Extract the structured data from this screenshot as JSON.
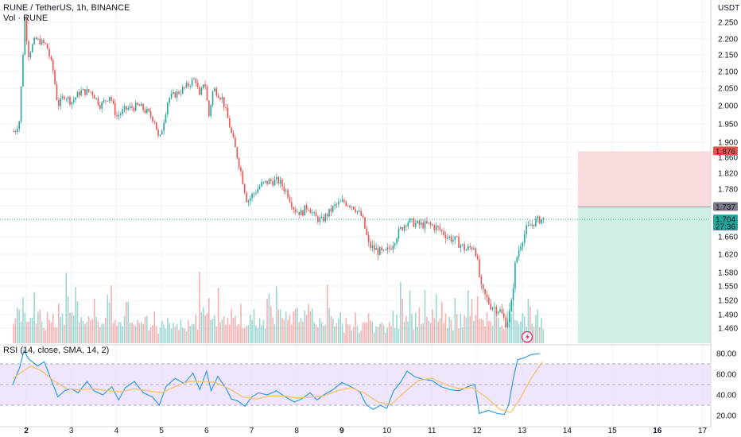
{
  "header": {
    "symbol_line": "RUNE / TetherUS, 1h, BINANCE",
    "volume_label": "Vol · RUNE",
    "currency": "USDT",
    "rsi_label": "RSI (14, close, SMA, 14, 2)"
  },
  "colors": {
    "up": "#26a69a",
    "down": "#ef5350",
    "rsi_line": "#2196f3",
    "rsi_sma": "#f5c36b",
    "rsi_band": "#e9dcfb",
    "stop_zone": "#f8cfd2",
    "target_zone": "#c8ebe1",
    "price_tag": "#26a69a",
    "stop_tag": "#ef5350",
    "entry_tag": "#787b86"
  },
  "tags": {
    "stop_price": "1.876",
    "entry_price": "1.737",
    "last_price": "1.704",
    "countdown": "27:36"
  },
  "chart_data": [
    {
      "type": "candlestick",
      "title": "RUNE / TetherUS, 1h, BINANCE",
      "ylabel": "USDT",
      "x_ticks": [
        "2",
        "3",
        "4",
        "5",
        "6",
        "7",
        "8",
        "9",
        "10",
        "11",
        "12",
        "13",
        "14",
        "15",
        "16",
        "17"
      ],
      "y_ticks": [
        2.25,
        2.2,
        2.15,
        2.1,
        2.05,
        2.0,
        1.95,
        1.9,
        1.86,
        1.82,
        1.78,
        1.74,
        1.7,
        1.66,
        1.62,
        1.58,
        1.55,
        1.52,
        1.49,
        1.46
      ],
      "ylim": [
        1.44,
        2.27
      ],
      "xlim_days": [
        1.7,
        17.6
      ],
      "grid": true,
      "close_path": [
        [
          1.75,
          1.93
        ],
        [
          1.85,
          1.96
        ],
        [
          1.97,
          2.26
        ],
        [
          2.05,
          2.15
        ],
        [
          2.2,
          2.2
        ],
        [
          2.45,
          2.18
        ],
        [
          2.6,
          2.1
        ],
        [
          2.7,
          2.0
        ],
        [
          2.85,
          2.03
        ],
        [
          3.0,
          2.01
        ],
        [
          3.2,
          2.04
        ],
        [
          3.45,
          2.04
        ],
        [
          3.65,
          2.0
        ],
        [
          3.85,
          2.03
        ],
        [
          4.0,
          1.97
        ],
        [
          4.2,
          1.99
        ],
        [
          4.5,
          2.0
        ],
        [
          4.7,
          1.98
        ],
        [
          4.85,
          1.96
        ],
        [
          4.95,
          1.9
        ],
        [
          5.15,
          2.02
        ],
        [
          5.4,
          2.04
        ],
        [
          5.6,
          2.06
        ],
        [
          5.75,
          2.08
        ],
        [
          5.85,
          2.02
        ],
        [
          5.95,
          2.08
        ],
        [
          6.05,
          1.97
        ],
        [
          6.15,
          2.05
        ],
        [
          6.35,
          2.02
        ],
        [
          6.5,
          1.95
        ],
        [
          6.6,
          1.9
        ],
        [
          6.75,
          1.83
        ],
        [
          6.9,
          1.75
        ],
        [
          7.05,
          1.77
        ],
        [
          7.2,
          1.79
        ],
        [
          7.4,
          1.8
        ],
        [
          7.6,
          1.8
        ],
        [
          7.8,
          1.77
        ],
        [
          7.95,
          1.73
        ],
        [
          8.1,
          1.72
        ],
        [
          8.25,
          1.74
        ],
        [
          8.4,
          1.71
        ],
        [
          8.55,
          1.7
        ],
        [
          8.7,
          1.72
        ],
        [
          8.85,
          1.74
        ],
        [
          9.05,
          1.75
        ],
        [
          9.25,
          1.74
        ],
        [
          9.45,
          1.71
        ],
        [
          9.6,
          1.64
        ],
        [
          9.75,
          1.63
        ],
        [
          9.95,
          1.62
        ],
        [
          10.1,
          1.64
        ],
        [
          10.25,
          1.67
        ],
        [
          10.45,
          1.7
        ],
        [
          10.7,
          1.69
        ],
        [
          10.95,
          1.69
        ],
        [
          11.15,
          1.68
        ],
        [
          11.35,
          1.66
        ],
        [
          11.55,
          1.65
        ],
        [
          11.75,
          1.63
        ],
        [
          11.95,
          1.64
        ],
        [
          12.1,
          1.54
        ],
        [
          12.3,
          1.51
        ],
        [
          12.5,
          1.5
        ],
        [
          12.65,
          1.47
        ],
        [
          12.75,
          1.5
        ],
        [
          12.85,
          1.6
        ],
        [
          12.95,
          1.64
        ],
        [
          13.1,
          1.68
        ],
        [
          13.3,
          1.7
        ],
        [
          13.45,
          1.705
        ]
      ],
      "last_price": 1.704,
      "position": {
        "stop": 1.876,
        "entry": 1.737,
        "target_low": 1.44
      }
    },
    {
      "type": "bar",
      "title": "Vol · RUNE",
      "note": "Volume histogram; relative heights (0-1) per hour bar",
      "volume_relative": [
        0.35,
        0.28,
        0.55,
        0.32,
        0.3,
        0.5,
        0.3,
        0.26,
        0.22,
        0.38,
        0.3,
        0.48,
        0.26,
        0.3,
        0.4,
        0.22,
        0.28,
        0.24,
        0.3,
        0.35,
        0.22,
        0.5,
        0.3,
        0.25,
        0.42,
        0.28,
        0.33,
        0.26,
        0.7,
        0.5,
        0.45,
        0.32,
        0.3,
        0.55,
        0.4,
        0.36,
        0.28,
        0.24,
        0.3,
        0.35,
        0.32,
        0.28,
        0.3,
        0.44,
        0.34,
        0.3,
        0.28,
        0.26,
        0.36,
        0.3,
        0.5,
        0.4,
        0.6,
        0.35,
        0.3,
        0.28,
        0.25,
        0.35,
        0.3,
        0.28,
        0.62,
        0.4,
        0.34,
        0.3,
        0.28,
        0.32,
        0.26,
        0.3,
        0.22,
        0.2,
        0.32,
        0.26,
        0.22,
        0.2,
        0.18,
        0.3,
        0.22,
        0.18,
        0.16,
        0.22,
        0.2,
        0.24,
        0.38,
        0.25,
        0.22,
        0.2,
        0.18,
        0.22,
        0.2,
        0.25,
        0.18,
        0.16,
        0.2,
        0.24,
        0.18,
        0.32,
        0.26,
        0.3,
        0.2,
        0.7,
        0.48,
        0.35,
        0.3,
        0.4,
        0.55,
        0.32,
        0.25
      ]
    },
    {
      "type": "line",
      "title": "RSI (14, close, SMA, 14, 2)",
      "y_ticks": [
        80,
        60,
        40,
        20
      ],
      "ylim": [
        14,
        86
      ],
      "bands": [
        70,
        50,
        30
      ],
      "series": [
        {
          "role": "rsi",
          "points": [
            [
              1.7,
              50
            ],
            [
              1.85,
              66
            ],
            [
              1.95,
              83
            ],
            [
              2.05,
              75
            ],
            [
              2.25,
              68
            ],
            [
              2.4,
              72
            ],
            [
              2.55,
              55
            ],
            [
              2.7,
              38
            ],
            [
              2.85,
              44
            ],
            [
              3.0,
              46
            ],
            [
              3.15,
              42
            ],
            [
              3.35,
              53
            ],
            [
              3.5,
              44
            ],
            [
              3.7,
              40
            ],
            [
              3.9,
              48
            ],
            [
              4.05,
              35
            ],
            [
              4.2,
              47
            ],
            [
              4.4,
              53
            ],
            [
              4.6,
              42
            ],
            [
              4.8,
              38
            ],
            [
              4.95,
              30
            ],
            [
              5.1,
              48
            ],
            [
              5.3,
              56
            ],
            [
              5.5,
              51
            ],
            [
              5.7,
              61
            ],
            [
              5.85,
              45
            ],
            [
              6.0,
              63
            ],
            [
              6.1,
              44
            ],
            [
              6.25,
              58
            ],
            [
              6.45,
              45
            ],
            [
              6.55,
              36
            ],
            [
              6.7,
              34
            ],
            [
              6.85,
              29
            ],
            [
              7.0,
              38
            ],
            [
              7.15,
              42
            ],
            [
              7.35,
              40
            ],
            [
              7.55,
              44
            ],
            [
              7.75,
              38
            ],
            [
              7.95,
              33
            ],
            [
              8.1,
              36
            ],
            [
              8.3,
              42
            ],
            [
              8.45,
              35
            ],
            [
              8.6,
              40
            ],
            [
              8.8,
              45
            ],
            [
              9.0,
              52
            ],
            [
              9.2,
              48
            ],
            [
              9.4,
              43
            ],
            [
              9.55,
              30
            ],
            [
              9.7,
              26
            ],
            [
              9.85,
              30
            ],
            [
              10.0,
              27
            ],
            [
              10.15,
              44
            ],
            [
              10.3,
              52
            ],
            [
              10.45,
              63
            ],
            [
              10.6,
              58
            ],
            [
              10.8,
              55
            ],
            [
              11.0,
              54
            ],
            [
              11.2,
              48
            ],
            [
              11.4,
              45
            ],
            [
              11.6,
              44
            ],
            [
              11.8,
              48
            ],
            [
              11.95,
              50
            ],
            [
              12.05,
              22
            ],
            [
              12.25,
              25
            ],
            [
              12.45,
              22
            ],
            [
              12.6,
              21
            ],
            [
              12.7,
              30
            ],
            [
              12.8,
              55
            ],
            [
              12.9,
              74
            ],
            [
              13.05,
              76
            ],
            [
              13.2,
              79
            ],
            [
              13.4,
              80
            ]
          ]
        },
        {
          "role": "sma",
          "points": [
            [
              1.7,
              56
            ],
            [
              1.9,
              62
            ],
            [
              2.1,
              68
            ],
            [
              2.35,
              63
            ],
            [
              2.6,
              54
            ],
            [
              2.9,
              46
            ],
            [
              3.2,
              45
            ],
            [
              3.5,
              46
            ],
            [
              3.8,
              44
            ],
            [
              4.1,
              43
            ],
            [
              4.4,
              46
            ],
            [
              4.7,
              44
            ],
            [
              5.0,
              42
            ],
            [
              5.3,
              48
            ],
            [
              5.6,
              53
            ],
            [
              5.9,
              53
            ],
            [
              6.2,
              52
            ],
            [
              6.5,
              46
            ],
            [
              6.8,
              38
            ],
            [
              7.1,
              36
            ],
            [
              7.4,
              39
            ],
            [
              7.7,
              39
            ],
            [
              8.0,
              37
            ],
            [
              8.3,
              38
            ],
            [
              8.6,
              39
            ],
            [
              8.9,
              44
            ],
            [
              9.2,
              47
            ],
            [
              9.5,
              42
            ],
            [
              9.8,
              33
            ],
            [
              10.1,
              31
            ],
            [
              10.4,
              43
            ],
            [
              10.7,
              54
            ],
            [
              11.0,
              56
            ],
            [
              11.3,
              50
            ],
            [
              11.6,
              46
            ],
            [
              11.9,
              47
            ],
            [
              12.2,
              38
            ],
            [
              12.5,
              26
            ],
            [
              12.75,
              23
            ],
            [
              12.95,
              36
            ],
            [
              13.2,
              56
            ],
            [
              13.45,
              72
            ]
          ]
        }
      ]
    }
  ]
}
